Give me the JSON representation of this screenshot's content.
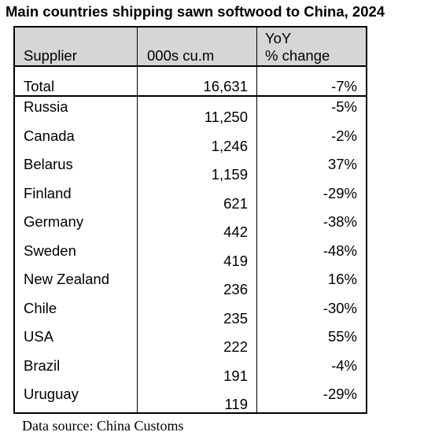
{
  "title": "Main countries shipping sawn softwood to China, 2024",
  "chart_data": {
    "type": "table",
    "columns": [
      "Supplier",
      "000s cu.m",
      "YoY",
      "% change"
    ],
    "total": {
      "supplier": "Total",
      "volume": "16,631",
      "yoy": "-7%"
    },
    "rows": [
      {
        "supplier": "Russia",
        "volume": "11,250",
        "yoy": "-5%"
      },
      {
        "supplier": "Canada",
        "volume": "1,246",
        "yoy": "-2%"
      },
      {
        "supplier": "Belarus",
        "volume": "1,159",
        "yoy": "37%"
      },
      {
        "supplier": "Finland",
        "volume": "621",
        "yoy": "-29%"
      },
      {
        "supplier": "Germany",
        "volume": "442",
        "yoy": "-38%"
      },
      {
        "supplier": "Sweden",
        "volume": "419",
        "yoy": "-48%"
      },
      {
        "supplier": "New Zealand",
        "volume": "236",
        "yoy": "16%"
      },
      {
        "supplier": "Chile",
        "volume": "235",
        "yoy": "-30%"
      },
      {
        "supplier": "USA",
        "volume": "222",
        "yoy": "55%"
      },
      {
        "supplier": "Brazil",
        "volume": "191",
        "yoy": "-4%"
      },
      {
        "supplier": "Uruguay",
        "volume": "119",
        "yoy": "-29%"
      }
    ]
  },
  "source": "Data source: China Customs",
  "colors": {
    "header_bg": "#d6d6d6",
    "border": "#000000"
  }
}
